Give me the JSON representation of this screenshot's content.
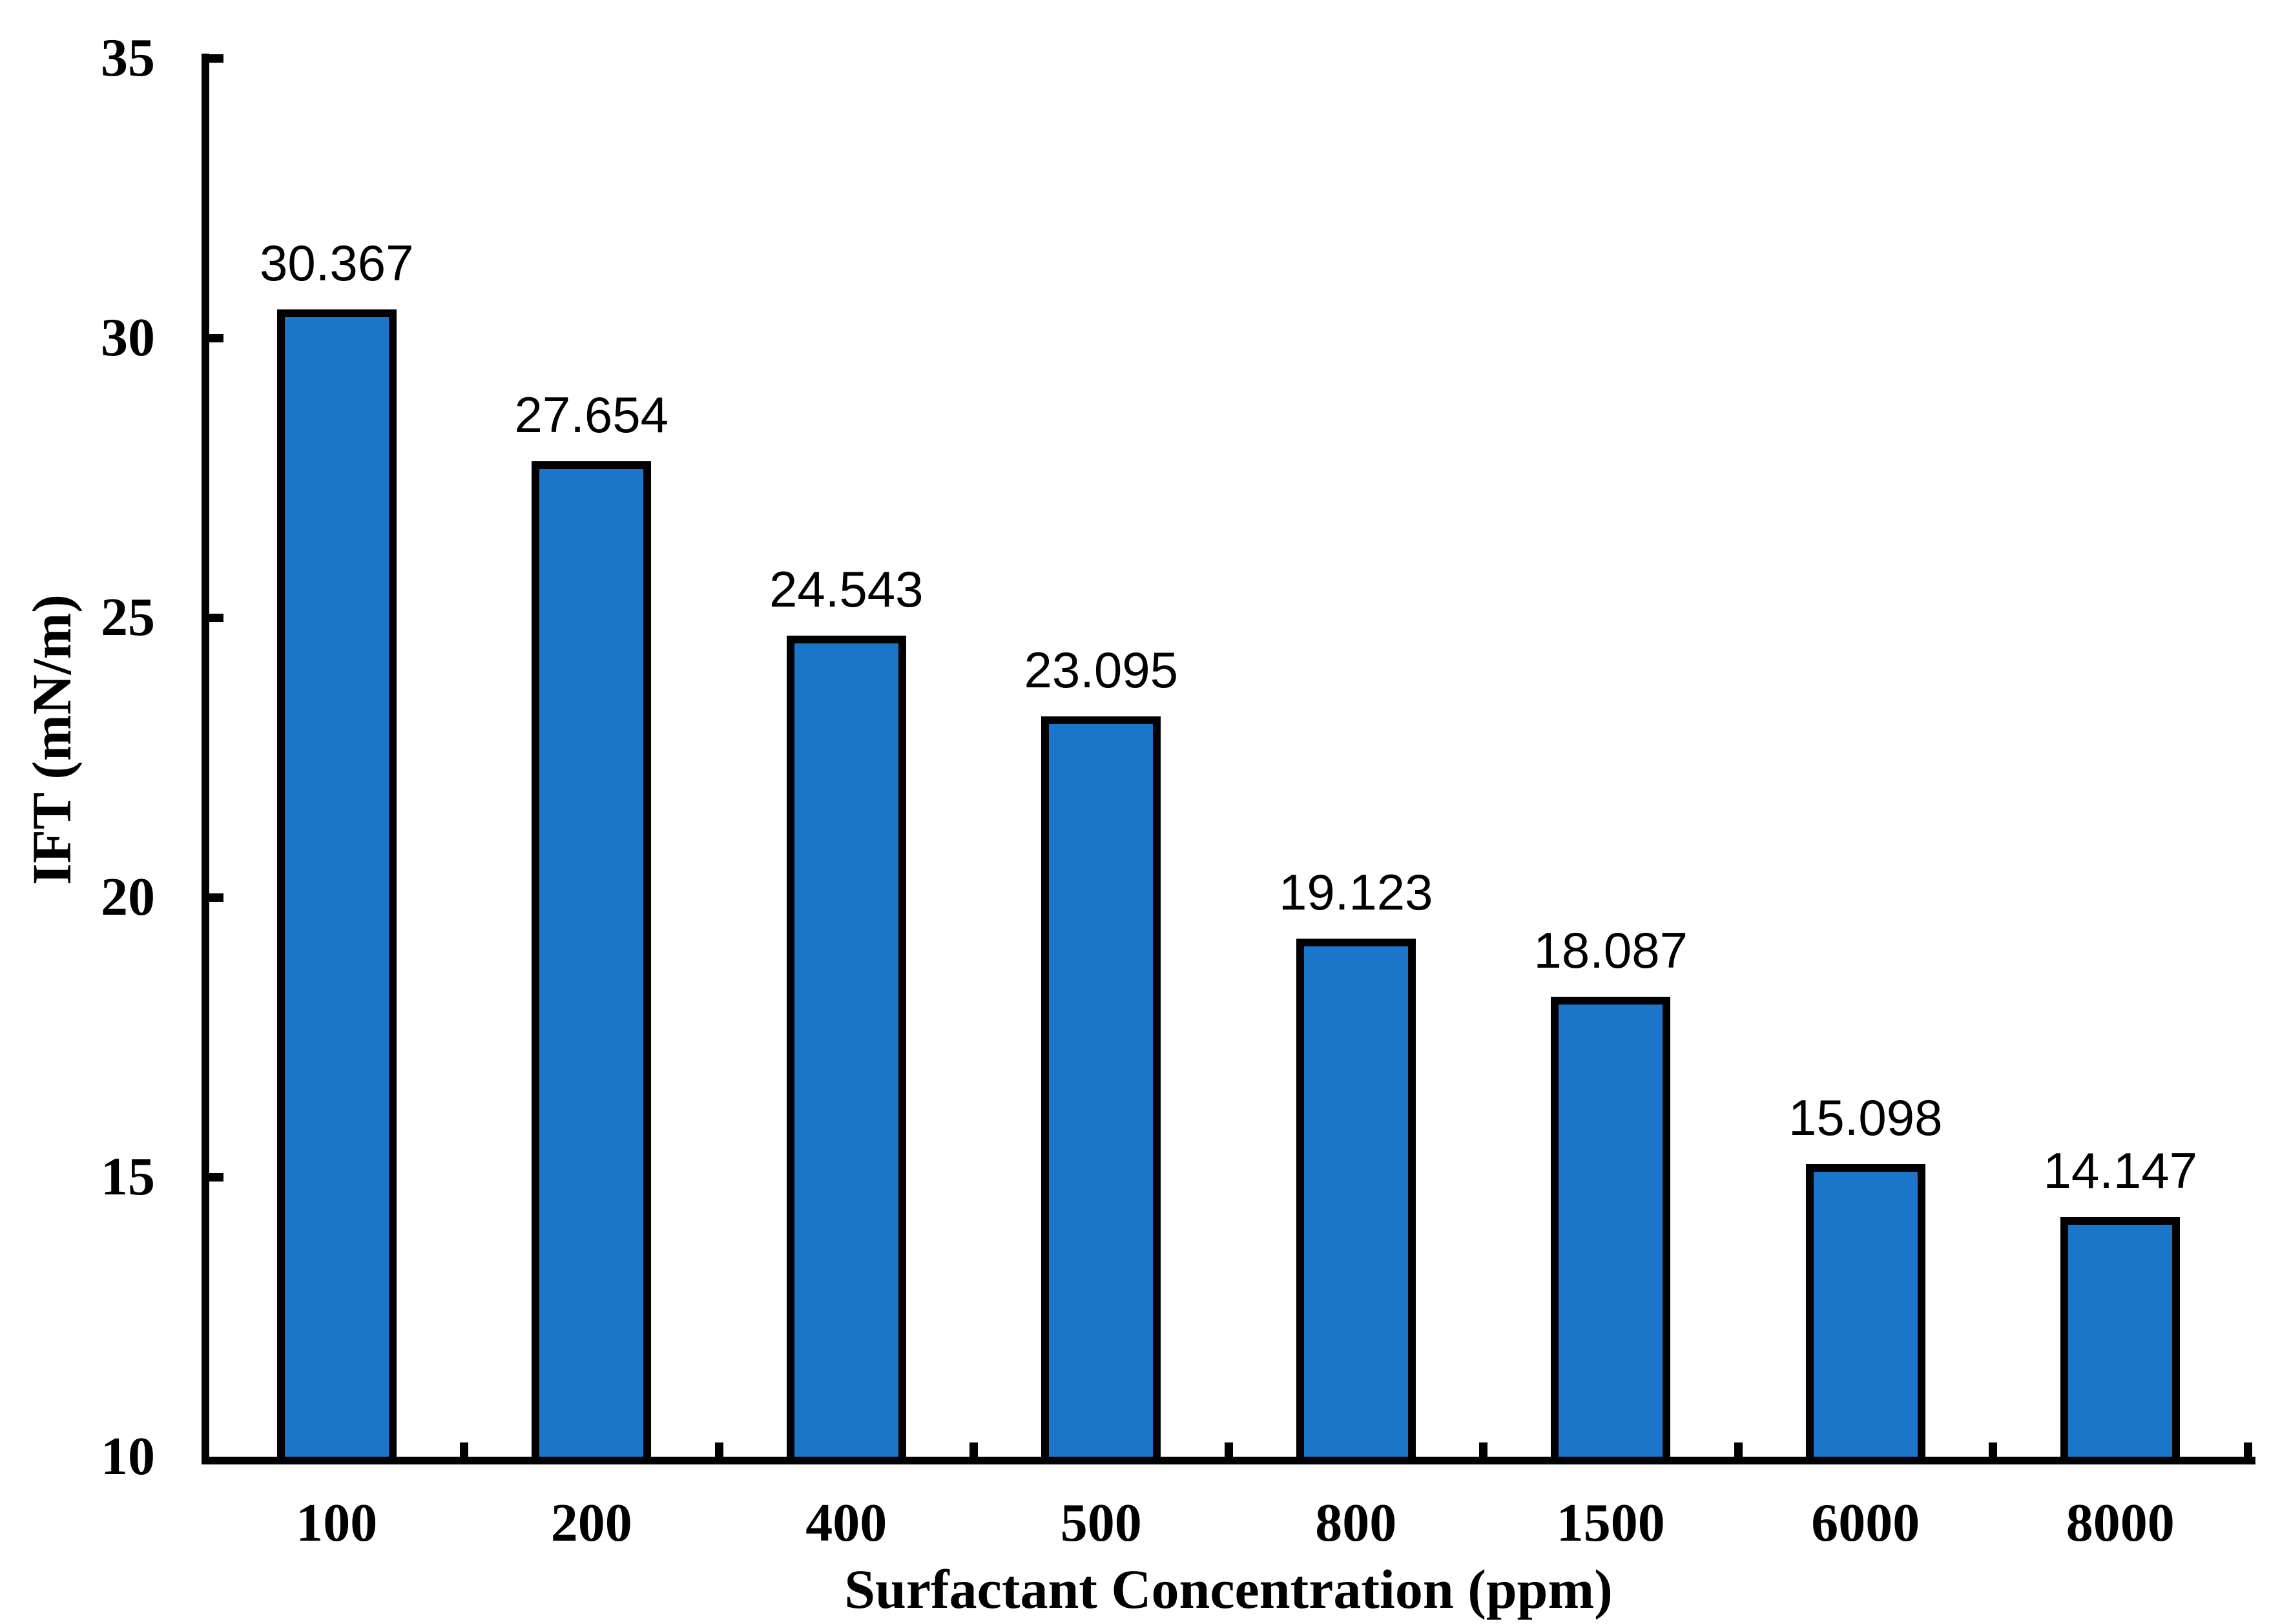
{
  "chart_data": {
    "type": "bar",
    "title": "",
    "xlabel": "Surfactant Concentration (ppm)",
    "ylabel": "IFT (mN/m)",
    "categories": [
      "100",
      "200",
      "400",
      "500",
      "800",
      "1500",
      "6000",
      "8000"
    ],
    "values": [
      30.367,
      27.654,
      24.543,
      23.095,
      19.123,
      18.087,
      15.098,
      14.147
    ],
    "data_labels": [
      "30.367",
      "27.654",
      "24.543",
      "23.095",
      "19.123",
      "18.087",
      "15.098",
      "14.147"
    ],
    "ylim": [
      10,
      35
    ],
    "yticks": [
      "10",
      "15",
      "20",
      "25",
      "30",
      "35"
    ],
    "grid": false,
    "legend": "none",
    "bar_color": "#1B75C9",
    "bar_border_color": "#000000",
    "axis_color": "#000000",
    "label_color": "#000000",
    "background_color": "#FFFFFF"
  }
}
